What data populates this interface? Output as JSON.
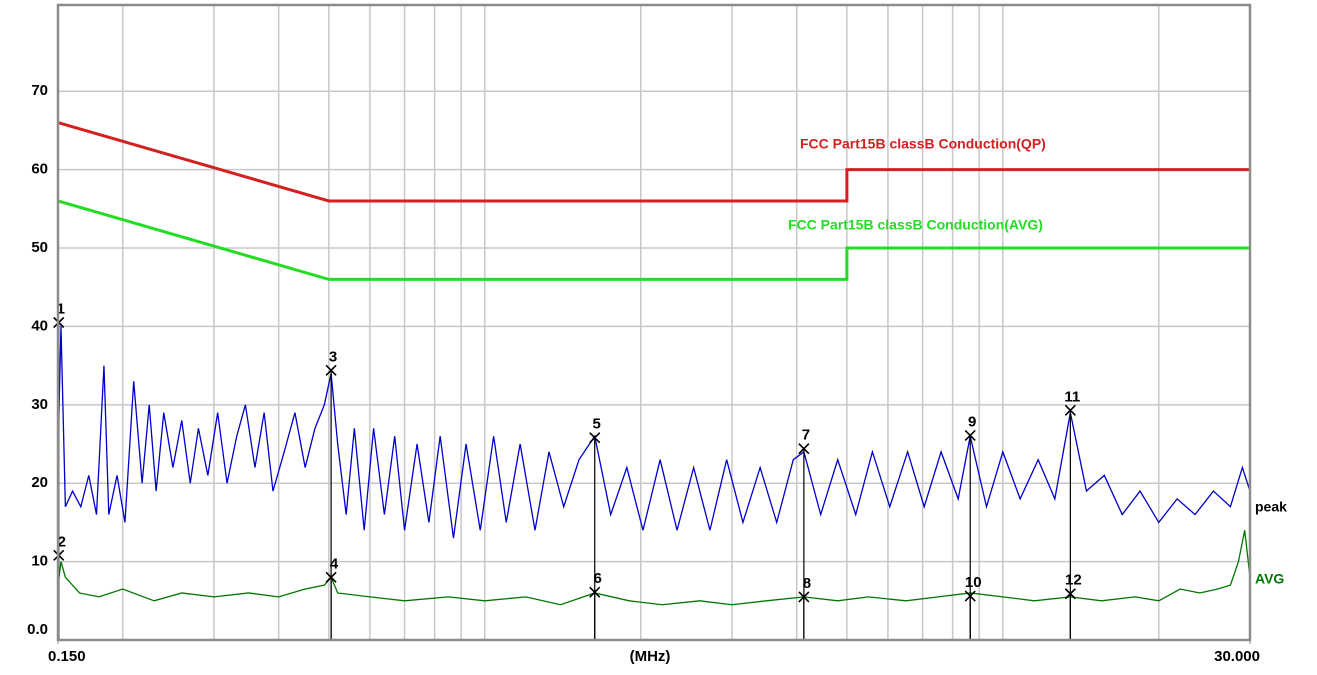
{
  "chart_data": {
    "type": "line",
    "xlog": true,
    "grid": true,
    "xlabel": "(MHz)",
    "xlim": [
      0.15,
      30
    ],
    "xticks": [
      {
        "value": 0.15,
        "label": "0.150"
      },
      {
        "value": 30,
        "label": "30.000"
      }
    ],
    "xgrid": [
      0.2,
      0.3,
      0.4,
      0.5,
      0.6,
      0.7,
      0.8,
      0.9,
      1,
      2,
      3,
      4,
      5,
      6,
      7,
      8,
      9,
      10,
      20
    ],
    "ylim": [
      0,
      81
    ],
    "yticks": [
      {
        "value": 0,
        "label": "0.0"
      },
      10,
      20,
      30,
      40,
      50,
      60,
      70
    ],
    "series": [
      {
        "name": "FCC  Part15B classB Conduction(QP)",
        "color": "#d42020",
        "x": [
          0.15,
          0.5,
          5,
          5,
          30
        ],
        "values": [
          66,
          56,
          56,
          60,
          60
        ]
      },
      {
        "name": "FCC  Part15B classB Conduction(AVG)",
        "color": "#22dd22",
        "x": [
          0.15,
          0.5,
          5,
          5,
          30
        ],
        "values": [
          56,
          46,
          46,
          50,
          50
        ]
      },
      {
        "name": "peak",
        "color": "#0000cc",
        "x": [
          0.15,
          0.152,
          0.155,
          0.16,
          0.166,
          0.172,
          0.178,
          0.184,
          0.188,
          0.195,
          0.202,
          0.21,
          0.218,
          0.225,
          0.232,
          0.24,
          0.25,
          0.26,
          0.27,
          0.28,
          0.292,
          0.305,
          0.318,
          0.332,
          0.345,
          0.36,
          0.375,
          0.39,
          0.41,
          0.43,
          0.45,
          0.47,
          0.49,
          0.505,
          0.52,
          0.54,
          0.56,
          0.585,
          0.61,
          0.64,
          0.67,
          0.7,
          0.74,
          0.78,
          0.82,
          0.87,
          0.92,
          0.98,
          1.04,
          1.1,
          1.17,
          1.25,
          1.33,
          1.42,
          1.52,
          1.63,
          1.75,
          1.88,
          2.02,
          2.18,
          2.35,
          2.53,
          2.72,
          2.93,
          3.15,
          3.4,
          3.66,
          3.94,
          4.13,
          4.45,
          4.8,
          5.2,
          5.6,
          6.05,
          6.55,
          7.05,
          7.6,
          8.2,
          8.65,
          9.3,
          10.0,
          10.8,
          11.7,
          12.6,
          13.5,
          14.5,
          15.7,
          17.0,
          18.4,
          20.0,
          21.7,
          23.5,
          25.5,
          27.5,
          29.0,
          30.0
        ],
        "values": [
          24,
          40,
          17,
          19,
          17,
          21,
          16,
          35,
          16,
          21,
          15,
          33,
          20,
          30,
          19,
          29,
          22,
          28,
          20,
          27,
          21,
          29,
          20,
          26,
          30,
          22,
          29,
          19,
          24,
          29,
          22,
          27,
          30,
          34,
          25,
          16,
          27,
          14,
          27,
          16,
          26,
          14,
          25,
          15,
          26,
          13,
          25,
          14,
          26,
          15,
          25,
          14,
          24,
          17,
          23,
          26,
          16,
          22,
          14,
          23,
          14,
          22,
          14,
          23,
          15,
          22,
          15,
          23,
          24,
          16,
          23,
          16,
          24,
          17,
          24,
          17,
          24,
          18,
          26,
          17,
          24,
          18,
          23,
          18,
          29,
          19,
          21,
          16,
          19,
          15,
          18,
          16,
          19,
          17,
          22,
          19
        ]
      },
      {
        "name": "AVG",
        "color": "#007700",
        "x": [
          0.15,
          0.152,
          0.155,
          0.165,
          0.18,
          0.2,
          0.23,
          0.26,
          0.3,
          0.35,
          0.4,
          0.45,
          0.49,
          0.505,
          0.52,
          0.6,
          0.7,
          0.85,
          1.0,
          1.2,
          1.4,
          1.63,
          1.9,
          2.2,
          2.6,
          3.0,
          3.5,
          4.13,
          4.8,
          5.5,
          6.5,
          7.5,
          8.65,
          10.0,
          11.5,
          13.5,
          15.5,
          18.0,
          20.0,
          22.0,
          24.0,
          26.0,
          27.5,
          28.5,
          29.3,
          30.0
        ],
        "values": [
          7,
          10,
          8,
          6,
          5.5,
          6.5,
          5,
          6,
          5.5,
          6,
          5.5,
          6.5,
          7,
          8,
          6,
          5.5,
          5,
          5.5,
          5,
          5.5,
          4.5,
          6,
          5,
          4.5,
          5,
          4.5,
          5,
          5.5,
          5,
          5.5,
          5,
          5.5,
          6,
          5.5,
          5,
          5.5,
          5,
          5.5,
          5,
          6.5,
          6,
          6.5,
          7,
          10,
          14,
          8
        ]
      }
    ],
    "markers": {
      "labels": [
        "1",
        "2",
        "3",
        "4",
        "5",
        "6",
        "7",
        "8",
        "9",
        "10",
        "11",
        "12"
      ],
      "x": [
        0.1505,
        0.1505,
        0.505,
        0.505,
        1.63,
        1.63,
        4.13,
        4.13,
        8.65,
        8.65,
        13.5,
        13.5
      ],
      "values": [
        40.5,
        10.8,
        34.4,
        8.0,
        25.8,
        6.1,
        24.4,
        5.5,
        26.1,
        5.6,
        29.3,
        5.9
      ]
    }
  }
}
